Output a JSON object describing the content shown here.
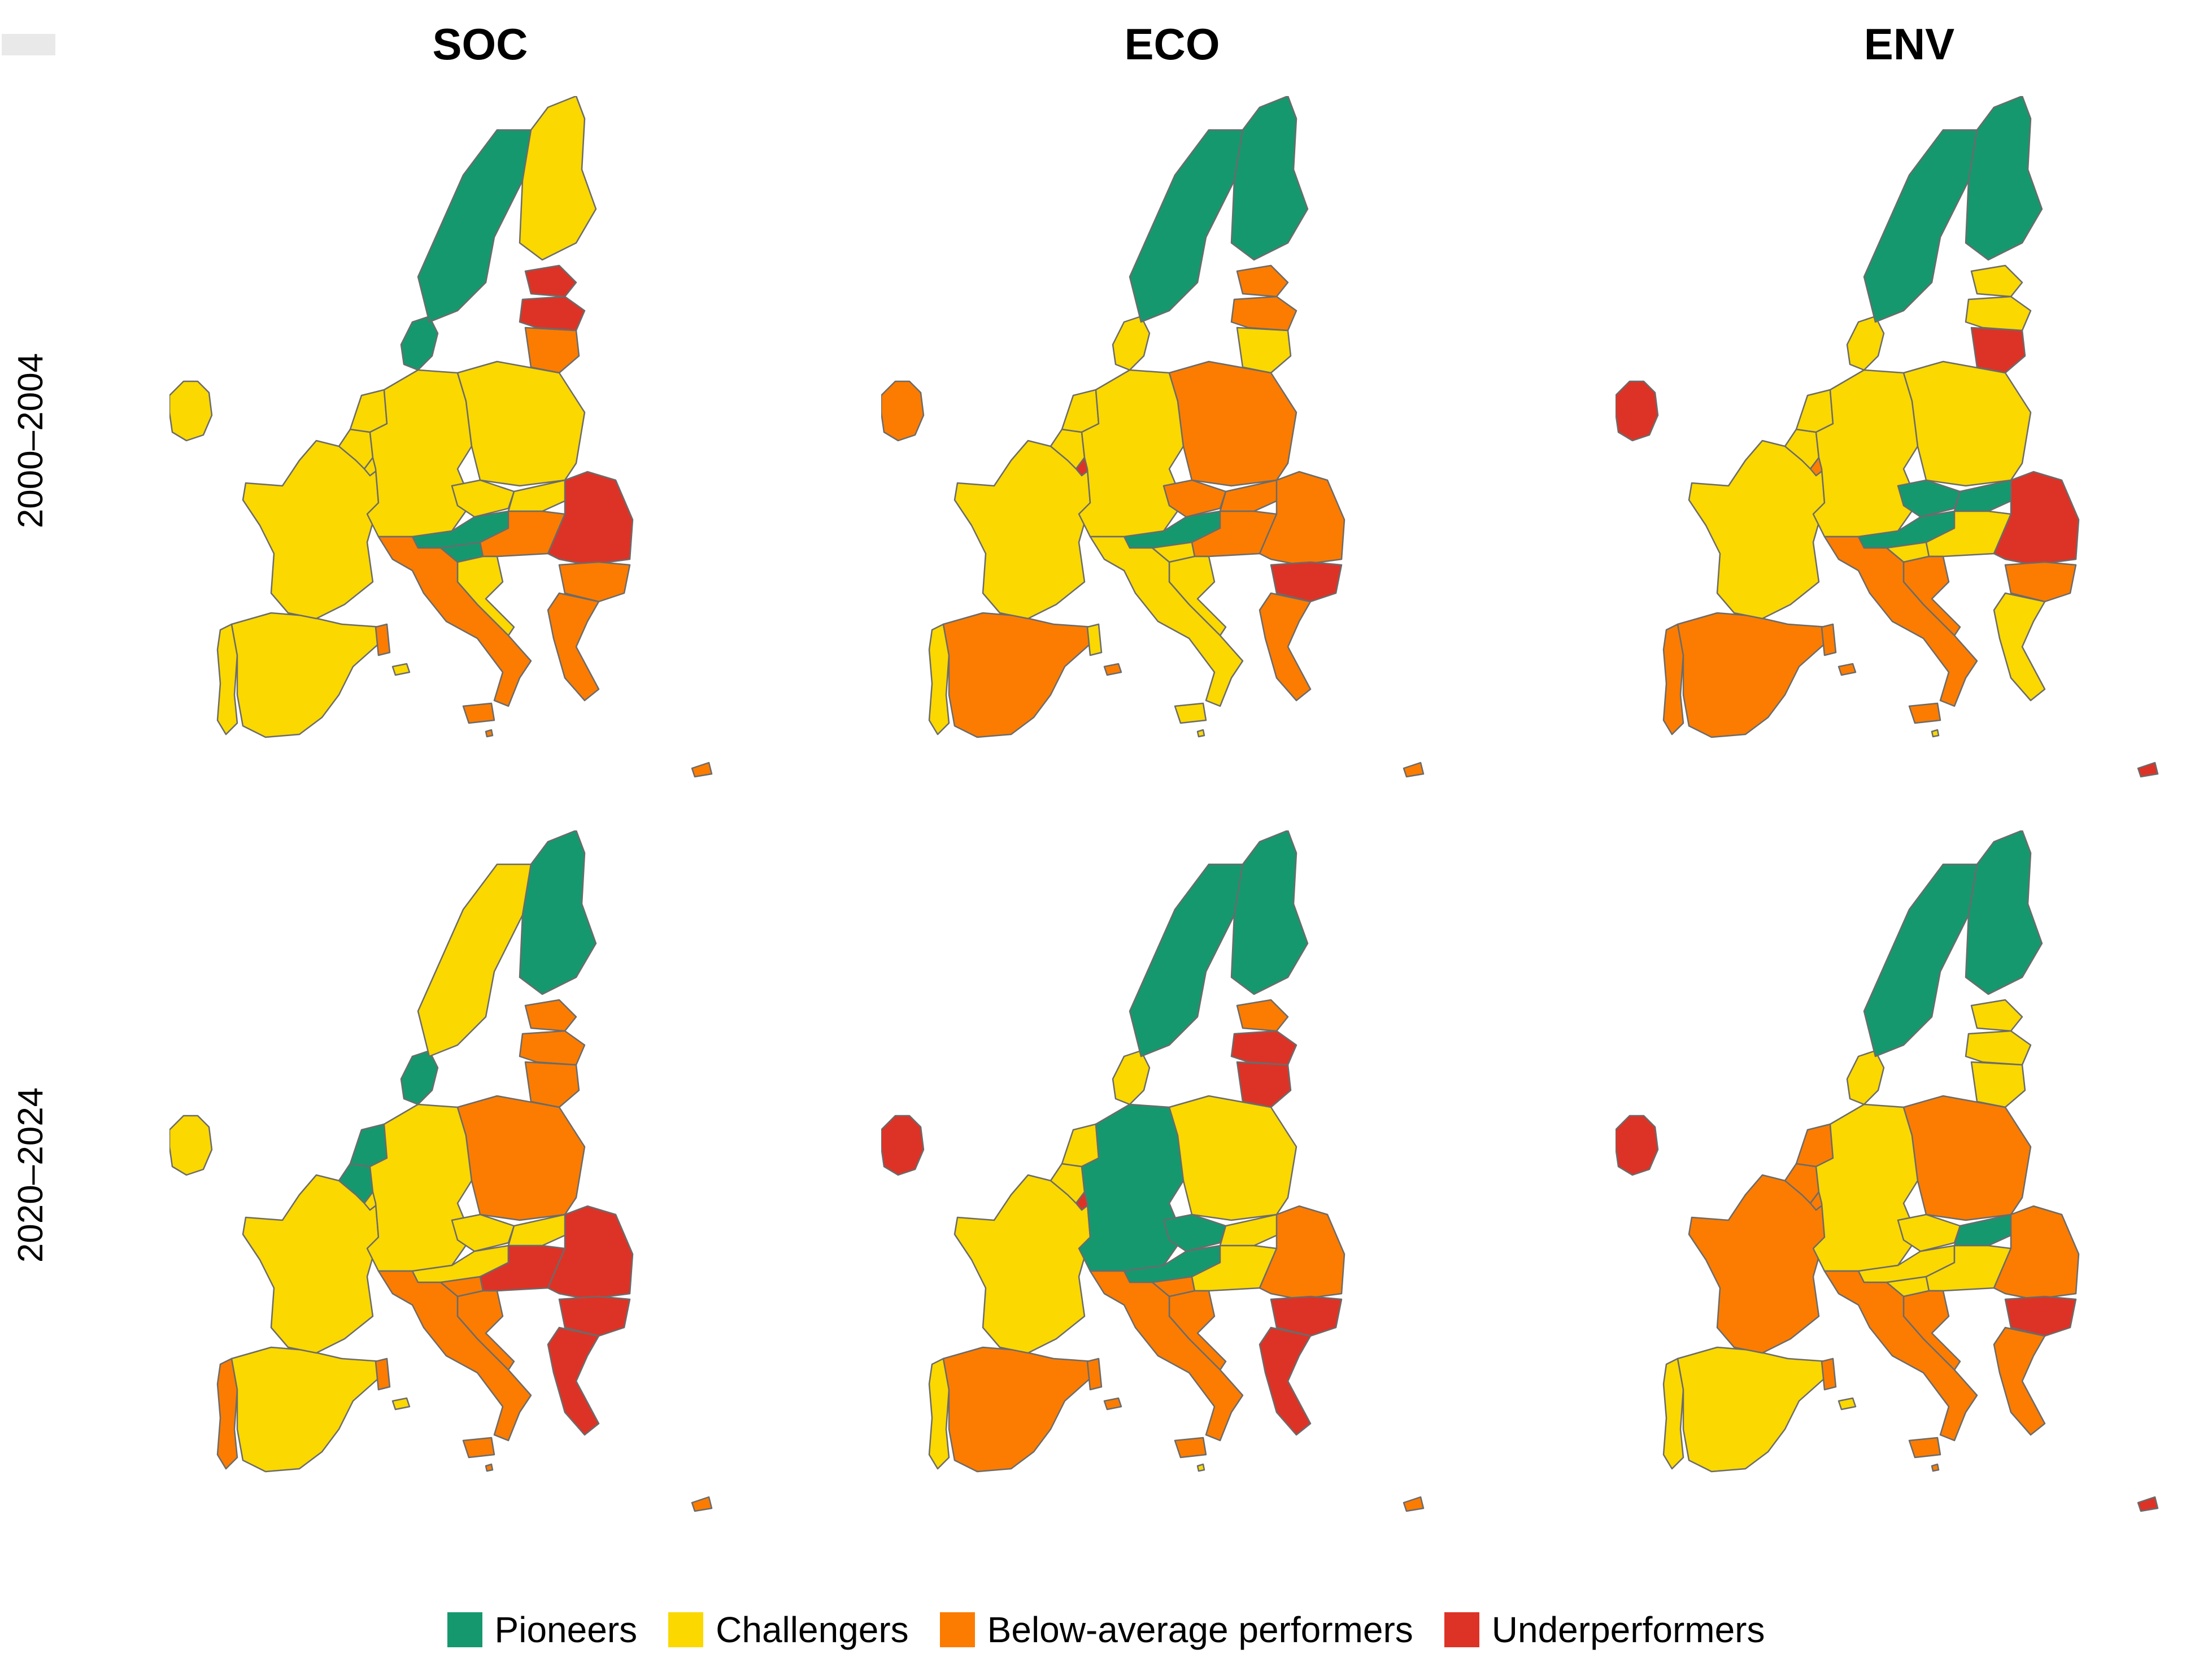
{
  "columns": [
    {
      "key": "soc",
      "title": "SOC"
    },
    {
      "key": "eco",
      "title": "ECO"
    },
    {
      "key": "env",
      "title": "ENV"
    }
  ],
  "rows": [
    {
      "key": "p2000",
      "label": "2000–2004"
    },
    {
      "key": "p2020",
      "label": "2020–2024"
    }
  ],
  "legend": [
    {
      "key": "P",
      "label": "Pioneers",
      "color": "#16986f"
    },
    {
      "key": "C",
      "label": "Challengers",
      "color": "#fad800"
    },
    {
      "key": "B",
      "label": "Below-average performers",
      "color": "#fb7c00"
    },
    {
      "key": "U",
      "label": "Underperformers",
      "color": "#dd3327"
    }
  ],
  "classification": {
    "soc_p2000": {
      "IE": "C",
      "PT": "C",
      "ES": "C",
      "FR": "C",
      "BE": "C",
      "NL": "C",
      "LU": "C",
      "DE": "C",
      "DK": "P",
      "SE": "P",
      "FI": "C",
      "EE": "U",
      "LV": "U",
      "LT": "B",
      "PL": "C",
      "CZ": "C",
      "SK": "C",
      "AT": "P",
      "SI": "P",
      "HU": "B",
      "RO": "U",
      "BG": "B",
      "HR": "C",
      "IT": "B",
      "GR": "B",
      "CY": "B",
      "MT": "B"
    },
    "soc_p2020": {
      "IE": "C",
      "PT": "B",
      "ES": "C",
      "FR": "C",
      "BE": "P",
      "NL": "P",
      "LU": "C",
      "DE": "C",
      "DK": "P",
      "SE": "C",
      "FI": "P",
      "EE": "B",
      "LV": "B",
      "LT": "B",
      "PL": "B",
      "CZ": "C",
      "SK": "C",
      "AT": "C",
      "SI": "B",
      "HU": "U",
      "RO": "U",
      "BG": "U",
      "HR": "B",
      "IT": "B",
      "GR": "U",
      "CY": "B",
      "MT": "B"
    },
    "eco_p2000": {
      "IE": "B",
      "PT": "C",
      "ES": "B",
      "FR": "C",
      "BE": "C",
      "NL": "C",
      "LU": "U",
      "DE": "C",
      "DK": "C",
      "SE": "P",
      "FI": "P",
      "EE": "B",
      "LV": "B",
      "LT": "C",
      "PL": "B",
      "CZ": "B",
      "SK": "B",
      "AT": "P",
      "SI": "C",
      "HU": "B",
      "RO": "B",
      "BG": "U",
      "HR": "C",
      "IT": "C",
      "GR": "B",
      "CY": "B",
      "MT": "C"
    },
    "eco_p2020": {
      "IE": "U",
      "PT": "C",
      "ES": "B",
      "FR": "C",
      "BE": "C",
      "NL": "C",
      "LU": "U",
      "DE": "P",
      "DK": "C",
      "SE": "P",
      "FI": "P",
      "EE": "B",
      "LV": "U",
      "LT": "U",
      "PL": "C",
      "CZ": "P",
      "SK": "C",
      "AT": "P",
      "SI": "B",
      "HU": "C",
      "RO": "B",
      "BG": "U",
      "HR": "B",
      "IT": "B",
      "GR": "U",
      "CY": "B",
      "MT": "C"
    },
    "env_p2000": {
      "IE": "U",
      "PT": "B",
      "ES": "B",
      "FR": "C",
      "BE": "C",
      "NL": "C",
      "LU": "B",
      "DE": "C",
      "DK": "C",
      "SE": "P",
      "FI": "P",
      "EE": "C",
      "LV": "C",
      "LT": "U",
      "PL": "C",
      "CZ": "P",
      "SK": "P",
      "AT": "P",
      "SI": "C",
      "HU": "C",
      "RO": "U",
      "BG": "B",
      "HR": "B",
      "IT": "B",
      "GR": "C",
      "CY": "U",
      "MT": "C"
    },
    "env_p2020": {
      "IE": "U",
      "PT": "C",
      "ES": "C",
      "FR": "B",
      "BE": "B",
      "NL": "B",
      "LU": "B",
      "DE": "C",
      "DK": "C",
      "SE": "P",
      "FI": "P",
      "EE": "C",
      "LV": "C",
      "LT": "C",
      "PL": "B",
      "CZ": "C",
      "SK": "P",
      "AT": "C",
      "SI": "C",
      "HU": "C",
      "RO": "B",
      "BG": "U",
      "HR": "B",
      "IT": "B",
      "GR": "B",
      "CY": "U",
      "MT": "B"
    }
  }
}
